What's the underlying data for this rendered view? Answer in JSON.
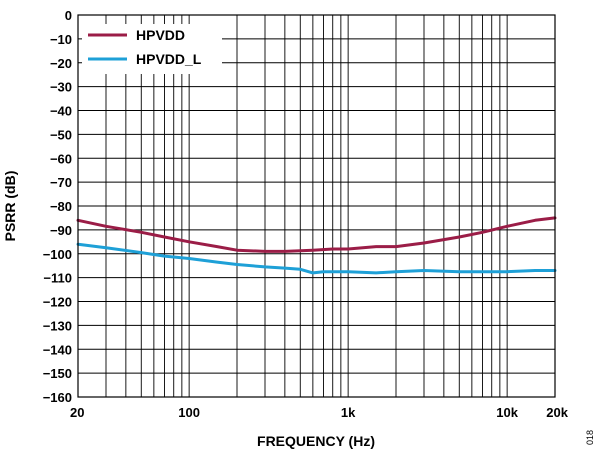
{
  "chart_data": {
    "type": "line",
    "title": "",
    "xlabel": "FREQUENCY (Hz)",
    "ylabel": "PSRR (dB)",
    "x_scale": "log",
    "xlim": [
      20,
      20000
    ],
    "ylim": [
      -160,
      0
    ],
    "grid": true,
    "legend_position": "top-left",
    "x_tick_labels": [
      {
        "value": 20,
        "label": "20"
      },
      {
        "value": 100,
        "label": "100"
      },
      {
        "value": 1000,
        "label": "1k"
      },
      {
        "value": 10000,
        "label": "10k"
      },
      {
        "value": 20000,
        "label": "20k"
      }
    ],
    "y_ticks": [
      0,
      -10,
      -20,
      -30,
      -40,
      -50,
      -60,
      -70,
      -80,
      -90,
      -100,
      -110,
      -120,
      -130,
      -140,
      -150,
      -160
    ],
    "series": [
      {
        "name": "HPVDD",
        "color": "#9b1d47",
        "x": [
          20,
          30,
          50,
          70,
          100,
          150,
          200,
          300,
          400,
          600,
          800,
          1000,
          1500,
          2000,
          3000,
          5000,
          7000,
          10000,
          15000,
          20000
        ],
        "y": [
          -86,
          -88.5,
          -91,
          -93,
          -95,
          -97,
          -98.5,
          -99,
          -99,
          -98.5,
          -98,
          -98,
          -97,
          -97,
          -95.5,
          -93,
          -91,
          -88.5,
          -86,
          -85
        ]
      },
      {
        "name": "HPVDD_L",
        "color": "#1ea0d7",
        "x": [
          20,
          30,
          50,
          70,
          100,
          150,
          200,
          300,
          400,
          500,
          600,
          700,
          800,
          1000,
          1500,
          2000,
          3000,
          5000,
          7000,
          10000,
          15000,
          20000
        ],
        "y": [
          -96,
          -97.5,
          -99.5,
          -101,
          -102,
          -103.5,
          -104.5,
          -105.5,
          -106,
          -106.5,
          -108,
          -107.5,
          -107.5,
          -107.5,
          -108,
          -107.5,
          -107,
          -107.5,
          -107.5,
          -107.5,
          -107,
          -107
        ]
      }
    ]
  },
  "figure_id": "018"
}
